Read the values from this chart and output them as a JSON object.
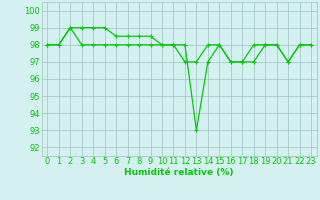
{
  "line1_x": [
    0,
    1,
    2,
    3,
    4,
    5,
    6,
    7,
    8,
    9,
    10,
    11,
    12,
    13,
    14,
    15,
    16,
    17,
    18,
    19,
    20,
    21,
    22,
    23
  ],
  "line1_y": [
    98,
    98,
    99,
    98,
    98,
    98,
    98,
    98,
    98,
    98,
    98,
    98,
    98,
    93,
    97,
    98,
    97,
    97,
    98,
    98,
    98,
    97,
    98,
    98
  ],
  "line2_x": [
    0,
    1,
    2,
    3,
    4,
    5,
    6,
    7,
    8,
    9,
    10,
    11,
    12,
    13,
    14,
    15,
    16,
    17,
    18,
    19,
    20,
    21,
    22,
    23
  ],
  "line2_y": [
    98,
    98,
    99,
    99,
    99,
    99,
    98.5,
    98.5,
    98.5,
    98.5,
    98,
    98,
    97,
    97,
    98,
    98,
    97,
    97,
    97,
    98,
    98,
    97,
    98,
    98
  ],
  "line_color": "#00cc00",
  "bg_color": "#d4f0f0",
  "grid_color": "#a0c0c0",
  "xlabel": "Humidité relative (%)",
  "xlim": [
    -0.5,
    23.5
  ],
  "ylim": [
    91.5,
    100.5
  ],
  "yticks": [
    92,
    93,
    94,
    95,
    96,
    97,
    98,
    99,
    100
  ],
  "xticks": [
    0,
    1,
    2,
    3,
    4,
    5,
    6,
    7,
    8,
    9,
    10,
    11,
    12,
    13,
    14,
    15,
    16,
    17,
    18,
    19,
    20,
    21,
    22,
    23
  ],
  "xlabel_fontsize": 6.5,
  "tick_fontsize": 6.0,
  "marker_size": 2.5,
  "line_width": 0.9
}
